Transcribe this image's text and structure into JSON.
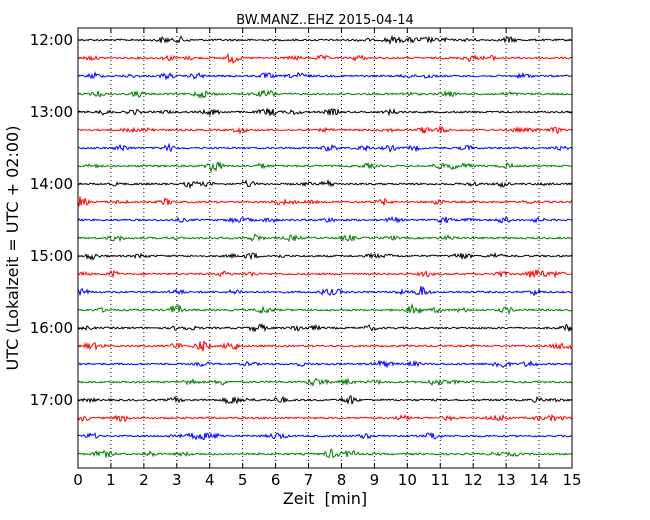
{
  "chart_data": {
    "type": "line",
    "title": "BW.MANZ..EHZ 2015-04-14",
    "xlabel": "Zeit  [min]",
    "ylabel": "UTC (Lokalzeit = UTC + 02:00)",
    "xlim": [
      0,
      15
    ],
    "x_ticks": [
      "0",
      "1",
      "2",
      "3",
      "4",
      "5",
      "6",
      "7",
      "8",
      "9",
      "10",
      "11",
      "12",
      "13",
      "14",
      "15"
    ],
    "y_tick_labels": [
      "12:00",
      "13:00",
      "14:00",
      "15:00",
      "16:00",
      "17:00"
    ],
    "grid": "vertical dotted",
    "trace_interval_minutes": 15,
    "trace_colors": [
      "#000000",
      "#ff0000",
      "#0000ff",
      "#008000"
    ],
    "traces": [
      {
        "start": "12:00",
        "color": "#000000"
      },
      {
        "start": "12:15",
        "color": "#ff0000"
      },
      {
        "start": "12:30",
        "color": "#0000ff"
      },
      {
        "start": "12:45",
        "color": "#008000"
      },
      {
        "start": "13:00",
        "color": "#000000"
      },
      {
        "start": "13:15",
        "color": "#ff0000"
      },
      {
        "start": "13:30",
        "color": "#0000ff"
      },
      {
        "start": "13:45",
        "color": "#008000"
      },
      {
        "start": "14:00",
        "color": "#000000"
      },
      {
        "start": "14:15",
        "color": "#ff0000"
      },
      {
        "start": "14:30",
        "color": "#0000ff"
      },
      {
        "start": "14:45",
        "color": "#008000"
      },
      {
        "start": "15:00",
        "color": "#000000"
      },
      {
        "start": "15:15",
        "color": "#ff0000"
      },
      {
        "start": "15:30",
        "color": "#0000ff"
      },
      {
        "start": "15:45",
        "color": "#008000"
      },
      {
        "start": "16:00",
        "color": "#000000"
      },
      {
        "start": "16:15",
        "color": "#ff0000"
      },
      {
        "start": "16:30",
        "color": "#0000ff"
      },
      {
        "start": "16:45",
        "color": "#008000"
      },
      {
        "start": "17:00",
        "color": "#000000"
      },
      {
        "start": "17:15",
        "color": "#ff0000"
      },
      {
        "start": "17:30",
        "color": "#0000ff"
      },
      {
        "start": "17:45",
        "color": "#008000"
      }
    ]
  }
}
